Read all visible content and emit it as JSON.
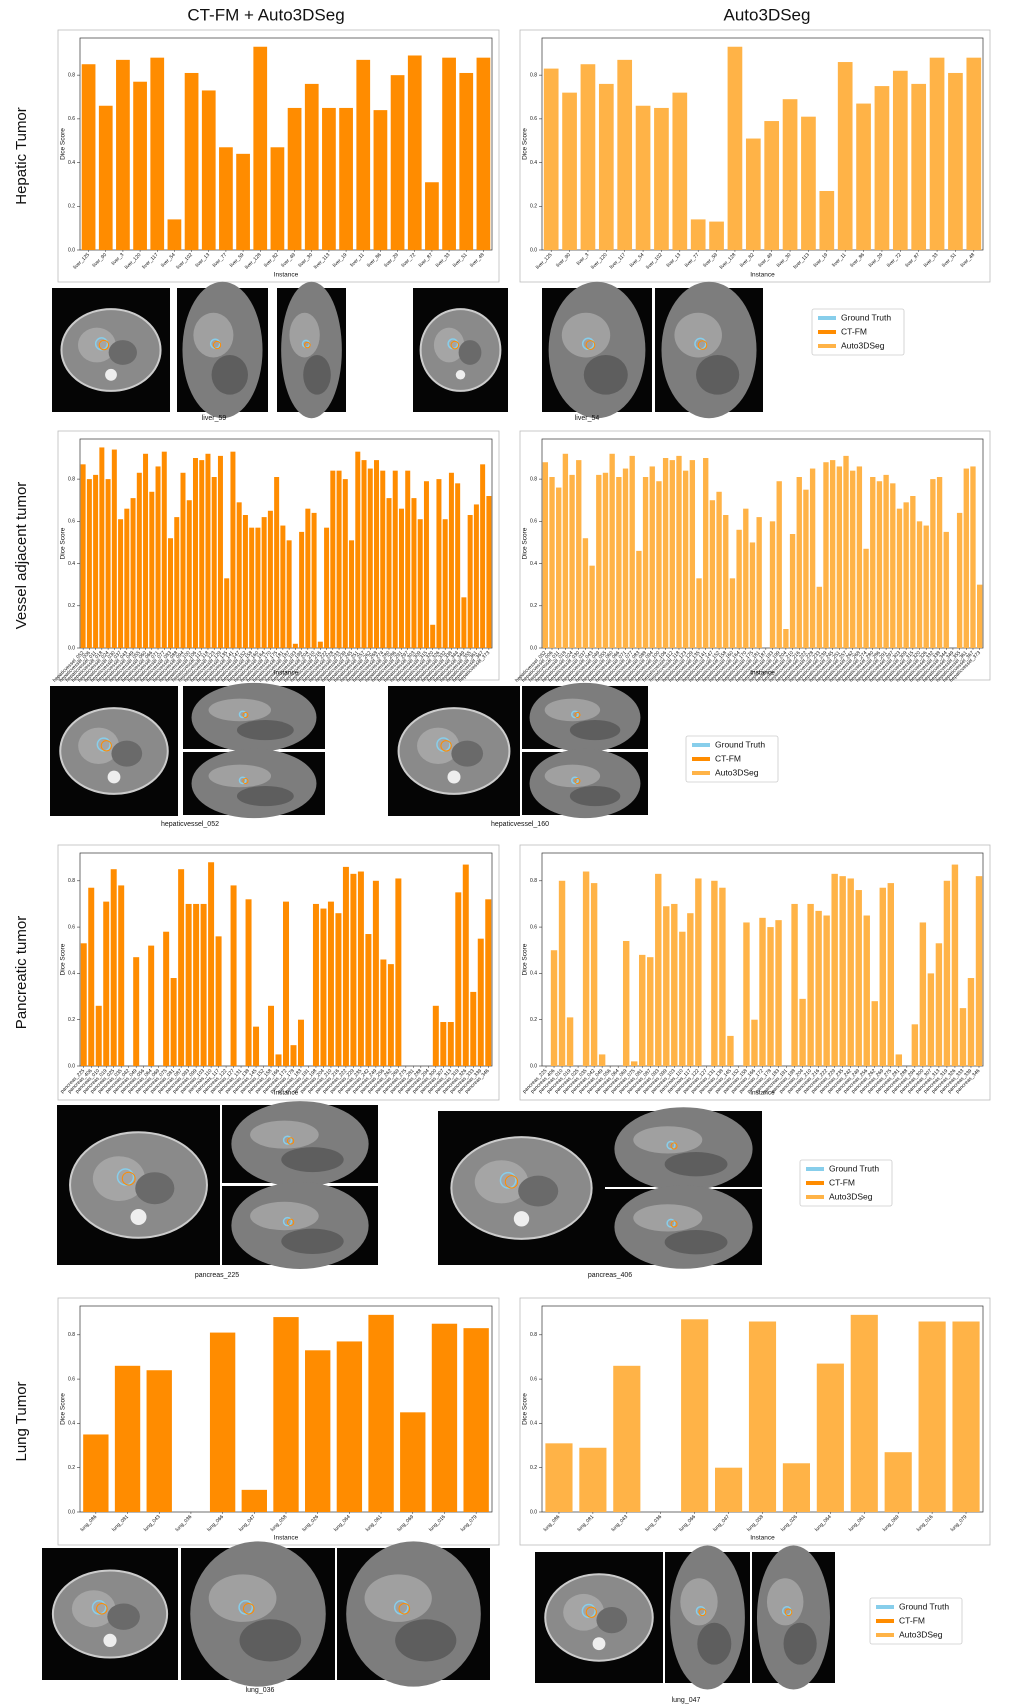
{
  "figure": {
    "column_titles": [
      "CT-FM + Auto3DSeg",
      "Auto3DSeg"
    ],
    "legend": [
      {
        "label": "Ground Truth",
        "color": "#87ceeb"
      },
      {
        "label": "CT-FM",
        "color": "#ff8c00"
      },
      {
        "label": "Auto3DSeg",
        "color": "#ffb347"
      }
    ],
    "rows": [
      {
        "captions": [
          "liver_59",
          "liver_54"
        ]
      },
      {
        "captions": [
          "hepaticvessel_052",
          "hepaticvessel_160"
        ]
      },
      {
        "captions": [
          "pancreas_225",
          "pancreas_406"
        ]
      },
      {
        "captions": [
          "lung_036",
          "lung_047"
        ]
      }
    ]
  },
  "chart_data": [
    {
      "type": "bar",
      "title": "Hepatic Tumor",
      "xlabel": "Instance",
      "ylabel": "Dice Score",
      "categories": [
        "liver_125",
        "liver_90",
        "liver_3",
        "liver_120",
        "liver_117",
        "liver_54",
        "liver_102",
        "liver_13",
        "liver_77",
        "liver_59",
        "liver_128",
        "liver_82",
        "liver_49",
        "liver_30",
        "liver_113",
        "liver_19",
        "liver_11",
        "liver_86",
        "liver_29",
        "liver_72",
        "liver_87",
        "liver_33",
        "liver_51",
        "liver_48"
      ],
      "series": [
        {
          "color": "#ff8c00",
          "values": [
            0.85,
            0.66,
            0.87,
            0.77,
            0.88,
            0.14,
            0.81,
            0.73,
            0.47,
            0.44,
            0.93,
            0.47,
            0.65,
            0.76,
            0.65,
            0.65,
            0.87,
            0.64,
            0.8,
            0.89,
            0.31,
            0.88,
            0.81,
            0.88
          ]
        },
        {
          "color": "#ffb347",
          "values": [
            0.83,
            0.72,
            0.85,
            0.76,
            0.87,
            0.66,
            0.65,
            0.72,
            0.14,
            0.13,
            0.93,
            0.51,
            0.59,
            0.69,
            0.61,
            0.27,
            0.86,
            0.67,
            0.75,
            0.82,
            0.76,
            0.88,
            0.81,
            0.88
          ]
        }
      ],
      "ylim": [
        0,
        0.97
      ],
      "yticks": [
        {
          "value": 0,
          "label": "0.0"
        },
        0.2,
        0.4,
        0.6,
        0.8
      ]
    },
    {
      "type": "bar",
      "title": "Vessel adjacent tumor",
      "xlabel": "Instance",
      "ylabel": "Dice Score",
      "categories": [
        "hepaticvessel_052",
        "hepaticvessel_006",
        "hepaticvessel_011",
        "hepaticvessel_018",
        "hepaticvessel_024",
        "hepaticvessel_030",
        "hepaticvessel_037",
        "hepaticvessel_043",
        "hepaticvessel_049",
        "hepaticvessel_055",
        "hepaticvessel_060",
        "hepaticvessel_066",
        "hepaticvessel_071",
        "hepaticvessel_077",
        "hepaticvessel_083",
        "hepaticvessel_088",
        "hepaticvessel_094",
        "hepaticvessel_100",
        "hepaticvessel_106",
        "hepaticvessel_112",
        "hepaticvessel_118",
        "hepaticvessel_123",
        "hepaticvessel_129",
        "hepaticvessel_135",
        "hepaticvessel_141",
        "hepaticvessel_147",
        "hepaticvessel_152",
        "hepaticvessel_158",
        "hepaticvessel_160",
        "hepaticvessel_164",
        "hepaticvessel_170",
        "hepaticvessel_175",
        "hepaticvessel_181",
        "hepaticvessel_187",
        "hepaticvessel_193",
        "hepaticvessel_199",
        "hepaticvessel_204",
        "hepaticvessel_210",
        "hepaticvessel_216",
        "hepaticvessel_222",
        "hepaticvessel_228",
        "hepaticvessel_233",
        "hepaticvessel_239",
        "hepaticvessel_245",
        "hepaticvessel_251",
        "hepaticvessel_257",
        "hepaticvessel_262",
        "hepaticvessel_268",
        "hepaticvessel_274",
        "hepaticvessel_280",
        "hepaticvessel_286",
        "hepaticvessel_291",
        "hepaticvessel_297",
        "hepaticvessel_303",
        "hepaticvessel_309",
        "hepaticvessel_315",
        "hepaticvessel_320",
        "hepaticvessel_326",
        "hepaticvessel_332",
        "hepaticvessel_338",
        "hepaticvessel_344",
        "hepaticvessel_349",
        "hepaticvessel_355",
        "hepaticvessel_361",
        "hepaticvessel_367",
        "hepaticvessel_373"
      ],
      "series": [
        {
          "color": "#ff8c00",
          "values": [
            0.87,
            0.8,
            0.82,
            0.95,
            0.8,
            0.94,
            0.61,
            0.66,
            0.71,
            0.83,
            0.92,
            0.74,
            0.86,
            0.93,
            0.52,
            0.62,
            0.83,
            0.7,
            0.9,
            0.89,
            0.92,
            0.81,
            0.91,
            0.33,
            0.93,
            0.69,
            0.63,
            0.57,
            0.57,
            0.62,
            0.65,
            0.81,
            0.58,
            0.51,
            0.02,
            0.55,
            0.66,
            0.64,
            0.03,
            0.57,
            0.84,
            0.84,
            0.8,
            0.51,
            0.93,
            0.89,
            0.85,
            0.89,
            0.84,
            0.71,
            0.84,
            0.66,
            0.84,
            0.71,
            0.61,
            0.79,
            0.11,
            0.8,
            0.61,
            0.83,
            0.78,
            0.24,
            0.63,
            0.68,
            0.87,
            0.72
          ]
        },
        {
          "color": "#ffb347",
          "values": [
            0.88,
            0.81,
            0.76,
            0.92,
            0.82,
            0.89,
            0.52,
            0.39,
            0.82,
            0.83,
            0.92,
            0.81,
            0.85,
            0.91,
            0.46,
            0.81,
            0.86,
            0.79,
            0.9,
            0.89,
            0.91,
            0.84,
            0.89,
            0.33,
            0.9,
            0.7,
            0.74,
            0.63,
            0.33,
            0.56,
            0.66,
            0.5,
            0.62,
            0,
            0.6,
            0.79,
            0.09,
            0.54,
            0.81,
            0.75,
            0.85,
            0.29,
            0.88,
            0.89,
            0.86,
            0.91,
            0.84,
            0.86,
            0.47,
            0.81,
            0.79,
            0.82,
            0.78,
            0.66,
            0.69,
            0.72,
            0.6,
            0.58,
            0.8,
            0.81,
            0.55,
            0,
            0.64,
            0.85,
            0.86,
            0.3
          ]
        }
      ],
      "ylim": [
        0,
        0.99
      ],
      "yticks": [
        {
          "value": 0,
          "label": "0.0"
        },
        0.2,
        0.4,
        0.6,
        0.8
      ]
    },
    {
      "type": "bar",
      "title": "Pancreatic tumor",
      "xlabel": "Instance",
      "ylabel": "Dice Score",
      "categories": [
        "pancreas_225",
        "pancreas_406",
        "pancreas_010",
        "pancreas_019",
        "pancreas_025",
        "pancreas_035",
        "pancreas_042",
        "pancreas_049",
        "pancreas_056",
        "pancreas_064",
        "pancreas_069",
        "pancreas_075",
        "pancreas_081",
        "pancreas_087",
        "pancreas_093",
        "pancreas_099",
        "pancreas_103",
        "pancreas_110",
        "pancreas_117",
        "pancreas_122",
        "pancreas_127",
        "pancreas_131",
        "pancreas_138",
        "pancreas_145",
        "pancreas_152",
        "pancreas_158",
        "pancreas_166",
        "pancreas_172",
        "pancreas_178",
        "pancreas_183",
        "pancreas_191",
        "pancreas_198",
        "pancreas_204",
        "pancreas_210",
        "pancreas_216",
        "pancreas_222",
        "pancreas_229",
        "pancreas_235",
        "pancreas_242",
        "pancreas_249",
        "pancreas_256",
        "pancreas_262",
        "pancreas_269",
        "pancreas_275",
        "pancreas_281",
        "pancreas_288",
        "pancreas_294",
        "pancreas_300",
        "pancreas_307",
        "pancreas_313",
        "pancreas_319",
        "pancreas_326",
        "pancreas_333",
        "pancreas_339",
        "pancreas_346"
      ],
      "series": [
        {
          "color": "#ff8c00",
          "values": [
            0.53,
            0.77,
            0.26,
            0.71,
            0.85,
            0.78,
            0,
            0.47,
            0,
            0.52,
            0,
            0.58,
            0.38,
            0.85,
            0.7,
            0.7,
            0.7,
            0.88,
            0.56,
            0,
            0.78,
            0,
            0.72,
            0.17,
            0,
            0.26,
            0.05,
            0.71,
            0.09,
            0.2,
            0,
            0.7,
            0.68,
            0.71,
            0.66,
            0.86,
            0.83,
            0.84,
            0.57,
            0.8,
            0.46,
            0.44,
            0.81,
            0,
            0,
            0,
            0,
            0.26,
            0.19,
            0.19,
            0.75,
            0.87,
            0.32,
            0.55,
            0.72
          ]
        },
        {
          "color": "#ffb347",
          "values": [
            0,
            0.5,
            0.8,
            0.21,
            0,
            0.84,
            0.79,
            0.05,
            0,
            0,
            0.54,
            0.02,
            0.48,
            0.47,
            0.83,
            0.69,
            0.7,
            0.58,
            0.66,
            0.81,
            0,
            0.8,
            0.77,
            0.13,
            0,
            0.62,
            0.2,
            0.64,
            0.6,
            0.63,
            0,
            0.7,
            0.29,
            0.7,
            0.67,
            0.65,
            0.83,
            0.82,
            0.81,
            0.76,
            0.65,
            0.28,
            0.77,
            0.79,
            0.05,
            0,
            0.18,
            0.62,
            0.4,
            0.53,
            0.8,
            0.87,
            0.25,
            0.38,
            0.82
          ]
        }
      ],
      "ylim": [
        0,
        0.92
      ],
      "yticks": [
        {
          "value": 0,
          "label": "0.0"
        },
        0.2,
        0.4,
        0.6,
        0.8
      ]
    },
    {
      "type": "bar",
      "title": "Lung Tumor",
      "xlabel": "Instance",
      "ylabel": "Dice Score",
      "categories": [
        "lung_086",
        "lung_081",
        "lung_043",
        "lung_036",
        "lung_066",
        "lung_047",
        "lung_058",
        "lung_026",
        "lung_064",
        "lung_061",
        "lung_069",
        "lung_016",
        "lung_079"
      ],
      "series": [
        {
          "color": "#ff8c00",
          "values": [
            0.35,
            0.66,
            0.64,
            0,
            0.81,
            0.1,
            0.88,
            0.73,
            0.77,
            0.89,
            0.45,
            0.85,
            0.83
          ]
        },
        {
          "color": "#ffb347",
          "values": [
            0.31,
            0.29,
            0.66,
            0,
            0.87,
            0.2,
            0.86,
            0.22,
            0.67,
            0.89,
            0.27,
            0.86,
            0.86
          ]
        }
      ],
      "ylim": [
        0,
        0.93
      ],
      "yticks": [
        {
          "value": 0,
          "label": "0.0"
        },
        0.2,
        0.4,
        0.6,
        0.8
      ]
    }
  ]
}
